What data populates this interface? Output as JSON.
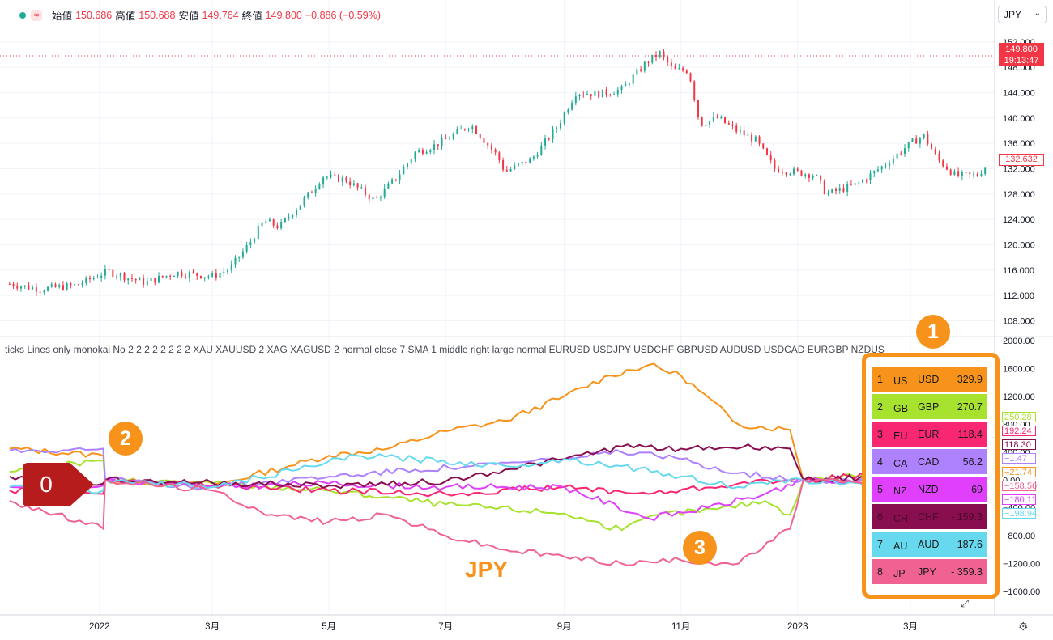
{
  "header": {
    "icon_name": "wave-icon",
    "open_label": "始値",
    "open": "150.686",
    "high_label": "高値",
    "high": "150.688",
    "low_label": "安値",
    "low": "149.764",
    "close_label": "終値",
    "close": "149.800",
    "change": "−0.886 (−0.59%)"
  },
  "symbol": {
    "value": "JPY",
    "chevron": "⌄"
  },
  "indicator_title": "ticks Lines only monokai No 2 2 2 2 2 2 2 2 XAU XAUUSD 2 XAG XAGUSD 2 normal close 7 SMA 1 middle right large normal EURUSD USDJPY USDCHF GBPUSD AUDUSD USDCAD EURGBP NZDUS",
  "price_axis": {
    "ticks": [
      "152.000",
      "148.000",
      "144.000",
      "140.000",
      "136.000",
      "132.000",
      "128.000",
      "124.000",
      "120.000",
      "116.000",
      "112.000",
      "108.000"
    ],
    "current": "149.800",
    "countdown": "19:13:47",
    "last": "132.632"
  },
  "lower_axis": {
    "ticks": [
      "2000.00",
      "1600.00",
      "1200.00",
      "800.00",
      "400.00",
      "0.00",
      "−400.00",
      "−800.00",
      "−1200.00",
      "−1600.00"
    ]
  },
  "time_axis": [
    "2022",
    "3月",
    "5月",
    "7月",
    "9月",
    "11月",
    "2023",
    "3月"
  ],
  "legend": [
    {
      "rank": "1",
      "cc": "US",
      "cur": "USD",
      "val": "329.9",
      "bg": "#f7931a",
      "fg": "#1a1a1a"
    },
    {
      "rank": "2",
      "cc": "GB",
      "cur": "GBP",
      "val": "270.7",
      "bg": "#a6e22e",
      "fg": "#1a1a1a"
    },
    {
      "rank": "3",
      "cc": "EU",
      "cur": "EUR",
      "val": "118.4",
      "bg": "#f92672",
      "fg": "#1a1a1a"
    },
    {
      "rank": "4",
      "cc": "CA",
      "cur": "CAD",
      "val": "56.2",
      "bg": "#ae81ff",
      "fg": "#1a1a1a"
    },
    {
      "rank": "5",
      "cc": "NZ",
      "cur": "NZD",
      "val": "- 69",
      "bg": "#e040fb",
      "fg": "#1a1a1a"
    },
    {
      "rank": "6",
      "cc": "CH",
      "cur": "CHF",
      "val": "- 159.3",
      "bg": "#880e4f",
      "fg": "#4a0a2a"
    },
    {
      "rank": "7",
      "cc": "AU",
      "cur": "AUD",
      "val": "- 187.6",
      "bg": "#66d9ef",
      "fg": "#1a1a1a"
    },
    {
      "rank": "8",
      "cc": "JP",
      "cur": "JPY",
      "val": "- 359.3",
      "bg": "#f06292",
      "fg": "#1a1a1a"
    }
  ],
  "value_tags": [
    {
      "text": "250.28",
      "color": "#a6e22e"
    },
    {
      "text": "192.24",
      "color": "#f92672"
    },
    {
      "text": "118.30",
      "color": "#880e4f"
    },
    {
      "text": "−1.47",
      "color": "#ae81ff"
    },
    {
      "text": "−21.74",
      "color": "#f7931a"
    },
    {
      "text": "−158.56",
      "color": "#f06292"
    },
    {
      "text": "−180.11",
      "color": "#e040fb"
    },
    {
      "text": "−198.94",
      "color": "#66d9ef"
    }
  ],
  "annotations": {
    "badge1": "1",
    "badge2": "2",
    "badge3": "3",
    "zero": "0",
    "jpy": "JPY"
  },
  "icons": {
    "settings": "gear-icon",
    "expand": "expand-icon"
  },
  "colors": {
    "up": "#22ab94",
    "down": "#f23645",
    "accent": "#f7931a"
  },
  "chart_data": [
    {
      "type": "candlestick",
      "title": "",
      "x": [
        "2022-01",
        "2022-02",
        "2022-03",
        "2022-04",
        "2022-05",
        "2022-06",
        "2022-07",
        "2022-08",
        "2022-09",
        "2022-10",
        "2022-11",
        "2022-12",
        "2023-01",
        "2023-02",
        "2023-03",
        "2023-04"
      ],
      "close_path": [
        [
          "2021-11-15",
          113.8
        ],
        [
          "2021-12-01",
          113.0
        ],
        [
          "2021-12-20",
          113.6
        ],
        [
          "2022-01-05",
          115.8
        ],
        [
          "2022-01-25",
          114.0
        ],
        [
          "2022-02-10",
          115.6
        ],
        [
          "2022-03-01",
          115.0
        ],
        [
          "2022-03-10",
          116.2
        ],
        [
          "2022-03-20",
          120.0
        ],
        [
          "2022-03-28",
          123.8
        ],
        [
          "2022-04-05",
          122.8
        ],
        [
          "2022-04-20",
          127.8
        ],
        [
          "2022-04-28",
          130.8
        ],
        [
          "2022-05-10",
          130.2
        ],
        [
          "2022-05-25",
          127.0
        ],
        [
          "2022-06-05",
          130.5
        ],
        [
          "2022-06-15",
          134.5
        ],
        [
          "2022-06-28",
          136.0
        ],
        [
          "2022-07-14",
          139.0
        ],
        [
          "2022-07-28",
          134.0
        ],
        [
          "2022-08-01",
          131.5
        ],
        [
          "2022-08-15",
          133.5
        ],
        [
          "2022-08-28",
          138.5
        ],
        [
          "2022-09-07",
          144.0
        ],
        [
          "2022-09-20",
          143.8
        ],
        [
          "2022-10-01",
          144.5
        ],
        [
          "2022-10-14",
          148.8
        ],
        [
          "2022-10-21",
          150.2
        ],
        [
          "2022-10-28",
          147.5
        ],
        [
          "2022-11-05",
          147.5
        ],
        [
          "2022-11-11",
          139.0
        ],
        [
          "2022-11-20",
          140.0
        ],
        [
          "2022-11-30",
          138.0
        ],
        [
          "2022-12-10",
          136.5
        ],
        [
          "2022-12-20",
          132.0
        ],
        [
          "2022-12-30",
          131.5
        ],
        [
          "2023-01-10",
          131.0
        ],
        [
          "2023-01-16",
          128.0
        ],
        [
          "2023-02-01",
          129.5
        ],
        [
          "2023-02-15",
          132.5
        ],
        [
          "2023-03-01",
          136.0
        ],
        [
          "2023-03-08",
          137.2
        ],
        [
          "2023-03-15",
          133.5
        ],
        [
          "2023-03-25",
          130.8
        ],
        [
          "2023-04-05",
          131.0
        ],
        [
          "2023-04-10",
          132.6
        ]
      ],
      "last": 132.632,
      "current": 149.8,
      "ylim": [
        105.5,
        153.5
      ]
    },
    {
      "type": "line",
      "ylim": [
        -1750,
        2000
      ],
      "series": [
        {
          "name": "USD",
          "color": "#f7931a",
          "points": [
            [
              "2021-11-15",
              450
            ],
            [
              "2022-01-03",
              350
            ],
            [
              "2022-01-04",
              0
            ],
            [
              "2022-03-01",
              -80
            ],
            [
              "2022-04-10",
              200
            ],
            [
              "2022-05-01",
              350
            ],
            [
              "2022-06-01",
              450
            ],
            [
              "2022-07-01",
              700
            ],
            [
              "2022-08-01",
              850
            ],
            [
              "2022-09-01",
              1200
            ],
            [
              "2022-09-25",
              1500
            ],
            [
              "2022-10-15",
              1650
            ],
            [
              "2022-11-01",
              1500
            ],
            [
              "2022-12-01",
              800
            ],
            [
              "2022-12-28",
              720
            ],
            [
              "2023-01-04",
              0
            ],
            [
              "2023-04-10",
              -20
            ]
          ]
        },
        {
          "name": "GBP",
          "color": "#a6e22e",
          "points": [
            [
              "2021-11-15",
              120
            ],
            [
              "2022-01-03",
              280
            ],
            [
              "2022-01-04",
              0
            ],
            [
              "2022-03-01",
              -50
            ],
            [
              "2022-05-01",
              -150
            ],
            [
              "2022-07-01",
              -350
            ],
            [
              "2022-09-01",
              -480
            ],
            [
              "2022-10-01",
              -720
            ],
            [
              "2022-10-20",
              -500
            ],
            [
              "2022-11-20",
              -420
            ],
            [
              "2022-12-15",
              -300
            ],
            [
              "2022-12-28",
              -500
            ],
            [
              "2023-01-04",
              0
            ],
            [
              "2023-04-10",
              250
            ]
          ]
        },
        {
          "name": "EUR",
          "color": "#f92672",
          "points": [
            [
              "2021-11-15",
              -150
            ],
            [
              "2022-01-03",
              -200
            ],
            [
              "2022-01-04",
              0
            ],
            [
              "2022-03-01",
              -80
            ],
            [
              "2022-05-01",
              -150
            ],
            [
              "2022-07-01",
              -200
            ],
            [
              "2022-09-01",
              -100
            ],
            [
              "2022-10-15",
              -200
            ],
            [
              "2022-12-01",
              -50
            ],
            [
              "2022-12-28",
              0
            ],
            [
              "2023-01-04",
              0
            ],
            [
              "2023-04-10",
              190
            ]
          ]
        },
        {
          "name": "CAD",
          "color": "#ae81ff",
          "points": [
            [
              "2021-11-15",
              420
            ],
            [
              "2022-01-03",
              450
            ],
            [
              "2022-01-04",
              0
            ],
            [
              "2022-03-01",
              -100
            ],
            [
              "2022-05-01",
              50
            ],
            [
              "2022-06-15",
              150
            ],
            [
              "2022-07-15",
              200
            ],
            [
              "2022-09-01",
              300
            ],
            [
              "2022-10-01",
              400
            ],
            [
              "2022-11-01",
              300
            ],
            [
              "2022-12-01",
              100
            ],
            [
              "2023-01-04",
              0
            ],
            [
              "2023-04-10",
              0
            ]
          ]
        },
        {
          "name": "NZD",
          "color": "#e040fb",
          "points": [
            [
              "2021-11-15",
              -100
            ],
            [
              "2022-01-03",
              -80
            ],
            [
              "2022-01-04",
              0
            ],
            [
              "2022-03-01",
              -100
            ],
            [
              "2022-05-01",
              -50
            ],
            [
              "2022-07-01",
              -100
            ],
            [
              "2022-09-01",
              -100
            ],
            [
              "2022-10-15",
              -550
            ],
            [
              "2022-11-15",
              -400
            ],
            [
              "2022-12-15",
              -200
            ],
            [
              "2023-01-04",
              0
            ],
            [
              "2023-04-10",
              -180
            ]
          ]
        },
        {
          "name": "CHF",
          "color": "#880e4f",
          "points": [
            [
              "2021-11-15",
              50
            ],
            [
              "2022-01-03",
              -50
            ],
            [
              "2022-01-04",
              0
            ],
            [
              "2022-03-01",
              -40
            ],
            [
              "2022-05-01",
              -80
            ],
            [
              "2022-07-01",
              -20
            ],
            [
              "2022-08-01",
              150
            ],
            [
              "2022-09-01",
              300
            ],
            [
              "2022-10-01",
              480
            ],
            [
              "2022-11-01",
              450
            ],
            [
              "2022-12-15",
              480
            ],
            [
              "2022-12-28",
              450
            ],
            [
              "2023-01-04",
              0
            ],
            [
              "2023-04-10",
              120
            ]
          ]
        },
        {
          "name": "AUD",
          "color": "#66d9ef",
          "points": [
            [
              "2021-11-15",
              -100
            ],
            [
              "2022-01-03",
              -150
            ],
            [
              "2022-01-04",
              0
            ],
            [
              "2022-03-01",
              -100
            ],
            [
              "2022-04-15",
              150
            ],
            [
              "2022-05-15",
              350
            ],
            [
              "2022-06-15",
              300
            ],
            [
              "2022-08-01",
              200
            ],
            [
              "2022-09-01",
              300
            ],
            [
              "2022-10-01",
              200
            ],
            [
              "2022-11-01",
              50
            ],
            [
              "2022-12-01",
              -100
            ],
            [
              "2023-01-04",
              0
            ],
            [
              "2023-04-10",
              -200
            ]
          ]
        },
        {
          "name": "JPY",
          "color": "#f06292",
          "points": [
            [
              "2021-11-15",
              -300
            ],
            [
              "2022-01-03",
              -700
            ],
            [
              "2022-01-04",
              0
            ],
            [
              "2022-03-01",
              -150
            ],
            [
              "2022-04-01",
              -500
            ],
            [
              "2022-05-01",
              -600
            ],
            [
              "2022-06-01",
              -500
            ],
            [
              "2022-07-01",
              -800
            ],
            [
              "2022-08-01",
              -1000
            ],
            [
              "2022-09-01",
              -1100
            ],
            [
              "2022-10-01",
              -1200
            ],
            [
              "2022-11-01",
              -1150
            ],
            [
              "2022-12-01",
              -1200
            ],
            [
              "2022-12-28",
              -700
            ],
            [
              "2023-01-04",
              0
            ],
            [
              "2023-04-10",
              -160
            ]
          ]
        }
      ]
    }
  ]
}
